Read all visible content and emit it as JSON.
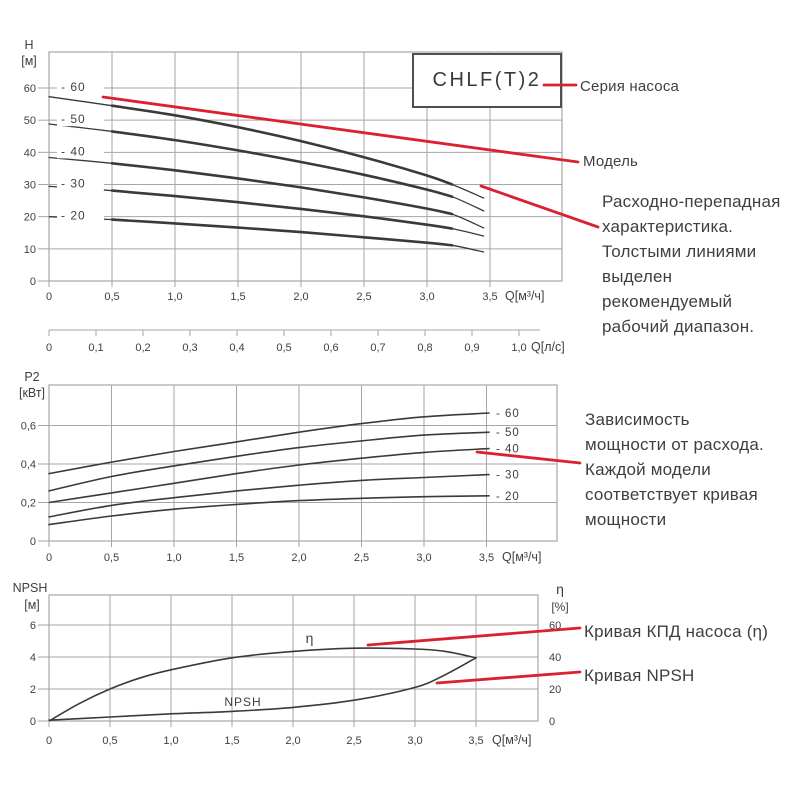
{
  "figure": {
    "series_box_label": "CHLF(T)2",
    "accent_color": "#da2130",
    "curve_color": "#3a3a3a",
    "grid_color": "#a6a6a6",
    "text_color": "#3f3f3f"
  },
  "callouts": {
    "series": "Серия насоса",
    "model": "Модель",
    "flow_head": "Расходно-перепадная\nхарактеристика.\nТолстыми линиями\nвыделен\nрекомендуемый\nрабочий диапазон.",
    "power": "Зависимость\nмощности от расхода.\nКаждой модели\nсоответствует кривая\nмощности",
    "efficiency": "Кривая КПД насоса (η)",
    "npsh": "Кривая NPSH"
  },
  "chart_data": [
    {
      "id": "head",
      "type": "line",
      "title": "Напорные характеристики CHLF(T)2",
      "ylabel": "H",
      "yunit": "[м]",
      "xlabel": "Q[м³/ч]",
      "xlim": [
        0,
        4.1
      ],
      "ylim": [
        0,
        71
      ],
      "grid": true,
      "x_ticks": [
        "0",
        "0,5",
        "1,0",
        "1,5",
        "2,0",
        "2,5",
        "3,0",
        "3,5"
      ],
      "x_values": [
        0,
        0.5,
        1.0,
        1.5,
        2.0,
        2.5,
        3.0,
        3.5
      ],
      "y_ticks": [
        "0",
        "10",
        "20",
        "30",
        "40",
        "50",
        "60"
      ],
      "y_values": [
        0,
        10,
        20,
        30,
        40,
        50,
        60
      ],
      "recommended_range_q": [
        0.45,
        3.2
      ],
      "series": [
        {
          "name": "- 60",
          "x": [
            0,
            0.5,
            1,
            1.5,
            2,
            2.5,
            3,
            3.2,
            3.45
          ],
          "y": [
            57.3,
            54.5,
            51.5,
            47.8,
            43.5,
            38.5,
            32.8,
            30.0,
            25.8
          ]
        },
        {
          "name": "- 50",
          "x": [
            0,
            0.5,
            1,
            1.5,
            2,
            2.5,
            3,
            3.2,
            3.45
          ],
          "y": [
            48.8,
            46.5,
            43.8,
            40.6,
            37.0,
            33.0,
            28.4,
            26.2,
            21.8
          ]
        },
        {
          "name": "- 40",
          "x": [
            0,
            0.5,
            1,
            1.5,
            2,
            2.5,
            3,
            3.2,
            3.45
          ],
          "y": [
            38.4,
            36.6,
            34.4,
            31.9,
            29.1,
            26.0,
            22.5,
            20.8,
            16.5
          ]
        },
        {
          "name": "- 30",
          "x": [
            0,
            0.5,
            1,
            1.5,
            2,
            2.5,
            3,
            3.2,
            3.45
          ],
          "y": [
            29.4,
            28.1,
            26.4,
            24.5,
            22.4,
            20.1,
            17.5,
            16.3,
            14.0
          ]
        },
        {
          "name": "- 20",
          "x": [
            0,
            0.5,
            1,
            1.5,
            2,
            2.5,
            3,
            3.2,
            3.45
          ],
          "y": [
            20.0,
            19.1,
            17.9,
            16.6,
            15.2,
            13.6,
            11.9,
            11.1,
            9.0
          ]
        }
      ],
      "secondary_axis": {
        "label": "Q[л/с]",
        "ticks": [
          "0",
          "0,1",
          "0,2",
          "0,3",
          "0,4",
          "0,5",
          "0,6",
          "0,7",
          "0,8",
          "0,9",
          "1,0"
        ],
        "values": [
          0,
          0.1,
          0.2,
          0.3,
          0.4,
          0.5,
          0.6,
          0.7,
          0.8,
          0.9,
          1.0
        ]
      }
    },
    {
      "id": "power",
      "type": "line",
      "title": "Мощность P2 от расхода",
      "ylabel": "P2",
      "yunit": "[кВт]",
      "xlabel": "Q[м³/ч]",
      "xlim": [
        0,
        4.05
      ],
      "ylim": [
        0,
        0.81
      ],
      "grid": true,
      "x_ticks": [
        "0",
        "0,5",
        "1,0",
        "1,5",
        "2,0",
        "2,5",
        "3,0",
        "3,5"
      ],
      "x_values": [
        0,
        0.5,
        1.0,
        1.5,
        2.0,
        2.5,
        3.0,
        3.5
      ],
      "y_ticks": [
        "0",
        "0,2",
        "0,4",
        "0,6"
      ],
      "y_values": [
        0,
        0.2,
        0.4,
        0.6
      ],
      "series": [
        {
          "name": "- 60",
          "x": [
            0,
            0.5,
            1,
            1.5,
            2,
            2.5,
            3,
            3.52
          ],
          "y": [
            0.35,
            0.41,
            0.465,
            0.515,
            0.565,
            0.61,
            0.645,
            0.665
          ]
        },
        {
          "name": "- 50",
          "x": [
            0,
            0.5,
            1,
            1.5,
            2,
            2.5,
            3,
            3.52
          ],
          "y": [
            0.26,
            0.335,
            0.39,
            0.44,
            0.485,
            0.52,
            0.55,
            0.565
          ]
        },
        {
          "name": "- 40",
          "x": [
            0,
            0.5,
            1,
            1.5,
            2,
            2.5,
            3,
            3.52
          ],
          "y": [
            0.2,
            0.25,
            0.3,
            0.35,
            0.395,
            0.43,
            0.46,
            0.48
          ]
        },
        {
          "name": "- 30",
          "x": [
            0,
            0.5,
            1,
            1.5,
            2,
            2.5,
            3,
            3.52
          ],
          "y": [
            0.125,
            0.185,
            0.225,
            0.26,
            0.29,
            0.315,
            0.33,
            0.345
          ]
        },
        {
          "name": "- 20",
          "x": [
            0,
            0.5,
            1,
            1.5,
            2,
            2.5,
            3,
            3.52
          ],
          "y": [
            0.085,
            0.13,
            0.165,
            0.19,
            0.21,
            0.222,
            0.23,
            0.235
          ]
        }
      ]
    },
    {
      "id": "npsh",
      "type": "line",
      "title": "NPSH и КПД",
      "ylabel": "NPSH",
      "yunit": "[м]",
      "xlabel": "Q[м³/ч]",
      "xlim": [
        0,
        4.0
      ],
      "ylim": [
        0,
        7.9
      ],
      "grid": true,
      "x_ticks": [
        "0",
        "0,5",
        "1,0",
        "1,5",
        "2,0",
        "2,5",
        "3,0",
        "3,5"
      ],
      "x_values": [
        0,
        0.5,
        1.0,
        1.5,
        2.0,
        2.5,
        3.0,
        3.5
      ],
      "y_ticks": [
        "0",
        "2",
        "4",
        "6"
      ],
      "y_values": [
        0,
        2,
        4,
        6
      ],
      "right_axis": {
        "label": "η",
        "unit": "[%]",
        "ticks": [
          "0",
          "20",
          "40",
          "60"
        ],
        "values": [
          0,
          20,
          40,
          60
        ],
        "ylim": [
          0,
          79
        ]
      },
      "series": [
        {
          "name": "η",
          "axis": "right",
          "x": [
            0,
            0.25,
            0.5,
            0.75,
            1,
            1.5,
            2,
            2.5,
            3,
            3.25,
            3.5
          ],
          "y": [
            0,
            11,
            20,
            27,
            32,
            39.5,
            43.5,
            45.5,
            45,
            43.5,
            39.5
          ]
        },
        {
          "name": "NPSH",
          "axis": "left",
          "x": [
            0,
            0.5,
            1,
            1.5,
            2,
            2.5,
            3,
            3.25,
            3.5
          ],
          "y": [
            0.05,
            0.25,
            0.45,
            0.6,
            0.85,
            1.3,
            2.1,
            2.9,
            3.95
          ]
        }
      ]
    }
  ]
}
